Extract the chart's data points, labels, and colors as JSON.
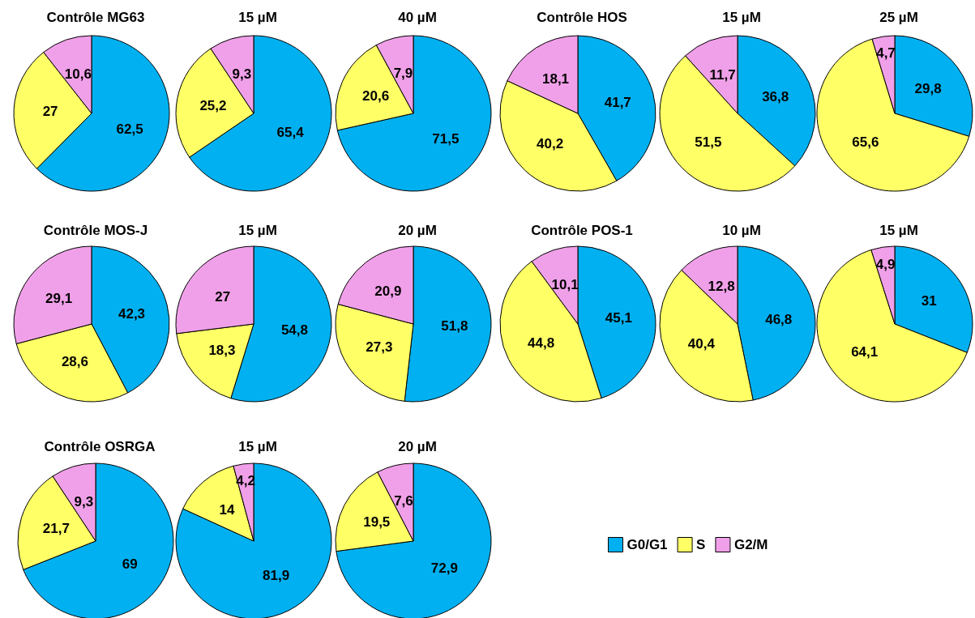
{
  "chart_data": [
    {
      "type": "pie",
      "title": "Contrôle MG63",
      "categories": [
        null,
        null,
        null
      ],
      "values": [
        62.5,
        27,
        10.6
      ],
      "value_labels": [
        "62,5",
        "27",
        "10,6"
      ],
      "colors": [
        "#00b0f0",
        "#ffff66",
        "#f0a0e8"
      ]
    },
    {
      "type": "pie",
      "title": "15 µM",
      "categories": [
        null,
        null,
        null
      ],
      "values": [
        65.4,
        25.2,
        9.3
      ],
      "value_labels": [
        "65,4",
        "25,2",
        "9,3"
      ],
      "colors": [
        "#00b0f0",
        "#ffff66",
        "#f0a0e8"
      ]
    },
    {
      "type": "pie",
      "title": "40 µM",
      "categories": [
        null,
        null,
        null
      ],
      "values": [
        71.5,
        20.6,
        7.9
      ],
      "value_labels": [
        "71,5",
        "20,6",
        "7,9"
      ],
      "colors": [
        "#00b0f0",
        "#ffff66",
        "#f0a0e8"
      ]
    },
    {
      "type": "pie",
      "title": "Contrôle HOS",
      "categories": [
        null,
        null,
        null
      ],
      "values": [
        41.7,
        40.2,
        18.1
      ],
      "value_labels": [
        "41,7",
        "40,2",
        "18,1"
      ],
      "colors": [
        "#00b0f0",
        "#ffff66",
        "#f0a0e8"
      ]
    },
    {
      "type": "pie",
      "title": "15 µM",
      "categories": [
        null,
        null,
        null
      ],
      "values": [
        36.8,
        51.5,
        11.7
      ],
      "value_labels": [
        "36,8",
        "51,5",
        "11,7"
      ],
      "colors": [
        "#00b0f0",
        "#ffff66",
        "#f0a0e8"
      ]
    },
    {
      "type": "pie",
      "title": "25 µM",
      "categories": [
        null,
        null,
        null
      ],
      "values": [
        29.8,
        65.6,
        4.7
      ],
      "value_labels": [
        "29,8",
        "65,6",
        "4,7"
      ],
      "colors": [
        "#00b0f0",
        "#ffff66",
        "#f0a0e8"
      ]
    },
    {
      "type": "pie",
      "title": "Contrôle MOS-J",
      "categories": [
        null,
        null,
        null
      ],
      "values": [
        42.3,
        28.6,
        29.1
      ],
      "value_labels": [
        "42,3",
        "28,6",
        "29,1"
      ],
      "colors": [
        "#00b0f0",
        "#ffff66",
        "#f0a0e8"
      ]
    },
    {
      "type": "pie",
      "title": "15 µM",
      "categories": [
        null,
        null,
        null
      ],
      "values": [
        54.8,
        18.3,
        27
      ],
      "value_labels": [
        "54,8",
        "18,3",
        "27"
      ],
      "colors": [
        "#00b0f0",
        "#ffff66",
        "#f0a0e8"
      ]
    },
    {
      "type": "pie",
      "title": "20 µM",
      "categories": [
        null,
        null,
        null
      ],
      "values": [
        51.8,
        27.3,
        20.9
      ],
      "value_labels": [
        "51,8",
        "27,3",
        "20,9"
      ],
      "colors": [
        "#00b0f0",
        "#ffff66",
        "#f0a0e8"
      ]
    },
    {
      "type": "pie",
      "title": "Contrôle POS-1",
      "categories": [
        null,
        null,
        null
      ],
      "values": [
        45.1,
        44.8,
        10.1
      ],
      "value_labels": [
        "45,1",
        "44,8",
        "10,1"
      ],
      "colors": [
        "#00b0f0",
        "#ffff66",
        "#f0a0e8"
      ]
    },
    {
      "type": "pie",
      "title": "10 µM",
      "categories": [
        null,
        null,
        null
      ],
      "values": [
        46.8,
        40.4,
        12.8
      ],
      "value_labels": [
        "46,8",
        "40,4",
        "12,8"
      ],
      "colors": [
        "#00b0f0",
        "#ffff66",
        "#f0a0e8"
      ]
    },
    {
      "type": "pie",
      "title": "15 µM",
      "categories": [
        null,
        null,
        null
      ],
      "values": [
        31,
        64.1,
        4.9
      ],
      "value_labels": [
        "31",
        "64,1",
        "4,9"
      ],
      "colors": [
        "#00b0f0",
        "#ffff66",
        "#f0a0e8"
      ]
    },
    {
      "type": "pie",
      "title": "Contrôle OSRGA",
      "categories": [
        null,
        null,
        null
      ],
      "values": [
        69,
        21.7,
        9.3
      ],
      "value_labels": [
        "69",
        "21,7",
        "9,3"
      ],
      "colors": [
        "#00b0f0",
        "#ffff66",
        "#f0a0e8"
      ]
    },
    {
      "type": "pie",
      "title": "15 µM",
      "categories": [
        null,
        null,
        null
      ],
      "values": [
        81.9,
        14,
        4.2
      ],
      "value_labels": [
        "81,9",
        "14",
        "4,2"
      ],
      "colors": [
        "#00b0f0",
        "#ffff66",
        "#f0a0e8"
      ]
    },
    {
      "type": "pie",
      "title": "20 µM",
      "categories": [
        "G0/G1",
        "S",
        "G2/M"
      ],
      "values": [
        72.9,
        19.5,
        7.6
      ],
      "value_labels": [
        "72,9",
        "19,5",
        "7,6"
      ],
      "colors": [
        "#00b0f0",
        "#ffff66",
        "#f0a0e8"
      ],
      "legend": "right"
    }
  ]
}
